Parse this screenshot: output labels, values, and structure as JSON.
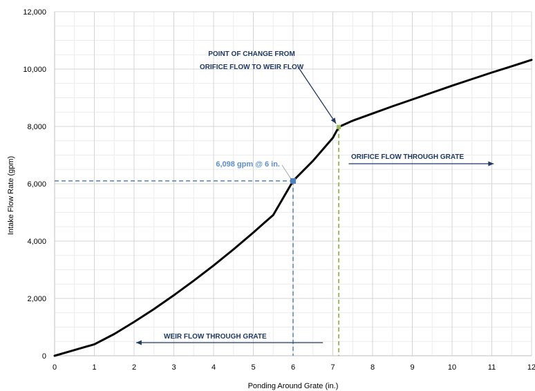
{
  "chart_data": {
    "type": "line",
    "xlabel": "Ponding Around Grate (in.)",
    "ylabel": "Intake Flow Rate (gpm)",
    "xlim": [
      0,
      12
    ],
    "ylim": [
      0,
      12000
    ],
    "x_ticks": [
      "0",
      "1",
      "2",
      "3",
      "4",
      "5",
      "6",
      "7",
      "8",
      "9",
      "10",
      "11",
      "12"
    ],
    "y_ticks": [
      "0",
      "2,000",
      "4,000",
      "6,000",
      "8,000",
      "10,000",
      "12,000"
    ],
    "grid": true,
    "series": [
      {
        "x": [
          0,
          0.5,
          1,
          1.5,
          2,
          2.5,
          3,
          3.5,
          4,
          4.5,
          5,
          5.5,
          6,
          6.5,
          7,
          7.15,
          7.5,
          8,
          8.5,
          9,
          9.5,
          10,
          10.5,
          11,
          11.5,
          12
        ],
        "y": [
          0,
          200,
          400,
          760,
          1180,
          1630,
          2110,
          2620,
          3150,
          3710,
          4300,
          4910,
          6098,
          6800,
          7600,
          7980,
          8200,
          8450,
          8700,
          8940,
          9180,
          9420,
          9650,
          9880,
          10100,
          10320
        ],
        "color": "#000000"
      }
    ],
    "annotations": {
      "point_of_change": {
        "line1": "POINT OF CHANGE FROM",
        "line2": "ORIFICE FLOW TO WEIR FLOW",
        "x": 7.15,
        "y": 7980,
        "color": "#9bbb59"
      },
      "design_point": {
        "label": "6,098 gpm @ 6 in.",
        "x": 6,
        "y": 6098,
        "color": "#4f81bd"
      },
      "orifice_label": "ORIFICE FLOW THROUGH GRATE",
      "weir_label": "WEIR FLOW THROUGH GRATE"
    }
  }
}
